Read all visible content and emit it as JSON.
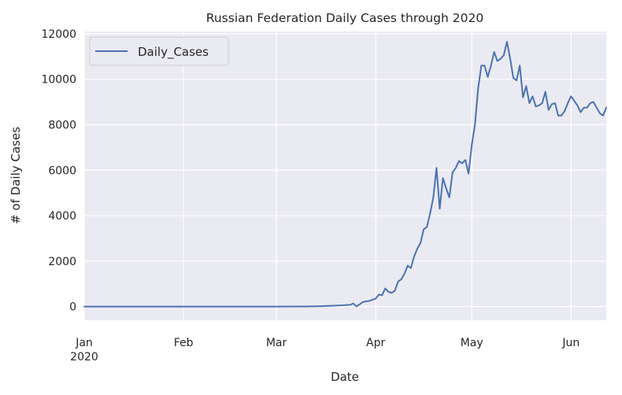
{
  "chart_data": {
    "type": "line",
    "title": "Russian Federation Daily Cases through 2020",
    "xlabel": "Date",
    "ylabel": "# of Daily Cases",
    "x_start": "2020-01-01",
    "x_end": "2020-06-12",
    "xlim": [
      "2020-01-01",
      "2020-06-12"
    ],
    "ylim": [
      -600,
      12100
    ],
    "grid": true,
    "legend": "top-left",
    "x_ticks": [
      {
        "date": "2020-01-01",
        "label": "Jan",
        "sublabel": "2020"
      },
      {
        "date": "2020-02-01",
        "label": "Feb",
        "sublabel": ""
      },
      {
        "date": "2020-03-01",
        "label": "Mar",
        "sublabel": ""
      },
      {
        "date": "2020-04-01",
        "label": "Apr",
        "sublabel": ""
      },
      {
        "date": "2020-05-01",
        "label": "May",
        "sublabel": ""
      },
      {
        "date": "2020-06-01",
        "label": "Jun",
        "sublabel": ""
      }
    ],
    "y_ticks": [
      0,
      2000,
      4000,
      6000,
      8000,
      10000,
      12000
    ],
    "series": [
      {
        "name": "Daily_Cases",
        "color": "#4c72b0",
        "points": [
          [
            "2020-01-01",
            0
          ],
          [
            "2020-02-01",
            0
          ],
          [
            "2020-03-01",
            0
          ],
          [
            "2020-03-10",
            5
          ],
          [
            "2020-03-15",
            20
          ],
          [
            "2020-03-17",
            30
          ],
          [
            "2020-03-19",
            40
          ],
          [
            "2020-03-20",
            50
          ],
          [
            "2020-03-21",
            55
          ],
          [
            "2020-03-22",
            60
          ],
          [
            "2020-03-23",
            70
          ],
          [
            "2020-03-24",
            75
          ],
          [
            "2020-03-25",
            140
          ],
          [
            "2020-03-26",
            10
          ],
          [
            "2020-03-27",
            100
          ],
          [
            "2020-03-28",
            200
          ],
          [
            "2020-03-29",
            230
          ],
          [
            "2020-03-30",
            250
          ],
          [
            "2020-03-31",
            300
          ],
          [
            "2020-04-01",
            350
          ],
          [
            "2020-04-02",
            530
          ],
          [
            "2020-04-03",
            500
          ],
          [
            "2020-04-04",
            800
          ],
          [
            "2020-04-05",
            650
          ],
          [
            "2020-04-06",
            600
          ],
          [
            "2020-04-07",
            700
          ],
          [
            "2020-04-08",
            1100
          ],
          [
            "2020-04-09",
            1200
          ],
          [
            "2020-04-10",
            1450
          ],
          [
            "2020-04-11",
            1800
          ],
          [
            "2020-04-12",
            1700
          ],
          [
            "2020-04-13",
            2200
          ],
          [
            "2020-04-14",
            2550
          ],
          [
            "2020-04-15",
            2800
          ],
          [
            "2020-04-16",
            3400
          ],
          [
            "2020-04-17",
            3500
          ],
          [
            "2020-04-18",
            4100
          ],
          [
            "2020-04-19",
            4800
          ],
          [
            "2020-04-20",
            6100
          ],
          [
            "2020-04-21",
            4300
          ],
          [
            "2020-04-22",
            5650
          ],
          [
            "2020-04-23",
            5200
          ],
          [
            "2020-04-24",
            4800
          ],
          [
            "2020-04-25",
            5900
          ],
          [
            "2020-04-26",
            6100
          ],
          [
            "2020-04-27",
            6400
          ],
          [
            "2020-04-28",
            6300
          ],
          [
            "2020-04-29",
            6450
          ],
          [
            "2020-04-30",
            5850
          ],
          [
            "2020-05-01",
            7100
          ],
          [
            "2020-05-02",
            8000
          ],
          [
            "2020-05-03",
            9600
          ],
          [
            "2020-05-04",
            10600
          ],
          [
            "2020-05-05",
            10600
          ],
          [
            "2020-05-06",
            10100
          ],
          [
            "2020-05-07",
            10600
          ],
          [
            "2020-05-08",
            11200
          ],
          [
            "2020-05-09",
            10800
          ],
          [
            "2020-05-10",
            10900
          ],
          [
            "2020-05-11",
            11050
          ],
          [
            "2020-05-12",
            11650
          ],
          [
            "2020-05-13",
            10900
          ],
          [
            "2020-05-14",
            10050
          ],
          [
            "2020-05-15",
            9950
          ],
          [
            "2020-05-16",
            10600
          ],
          [
            "2020-05-17",
            9200
          ],
          [
            "2020-05-18",
            9700
          ],
          [
            "2020-05-19",
            8950
          ],
          [
            "2020-05-20",
            9250
          ],
          [
            "2020-05-21",
            8800
          ],
          [
            "2020-05-22",
            8850
          ],
          [
            "2020-05-23",
            8950
          ],
          [
            "2020-05-24",
            9450
          ],
          [
            "2020-05-25",
            8650
          ],
          [
            "2020-05-26",
            8900
          ],
          [
            "2020-05-27",
            8950
          ],
          [
            "2020-05-28",
            8400
          ],
          [
            "2020-05-29",
            8400
          ],
          [
            "2020-05-30",
            8600
          ],
          [
            "2020-05-31",
            8950
          ],
          [
            "2020-06-01",
            9250
          ],
          [
            "2020-06-02",
            9050
          ],
          [
            "2020-06-03",
            8850
          ],
          [
            "2020-06-04",
            8550
          ],
          [
            "2020-06-05",
            8750
          ],
          [
            "2020-06-06",
            8750
          ],
          [
            "2020-06-07",
            8950
          ],
          [
            "2020-06-08",
            9000
          ],
          [
            "2020-06-09",
            8750
          ],
          [
            "2020-06-10",
            8500
          ],
          [
            "2020-06-11",
            8400
          ],
          [
            "2020-06-12",
            8750
          ]
        ]
      }
    ]
  }
}
